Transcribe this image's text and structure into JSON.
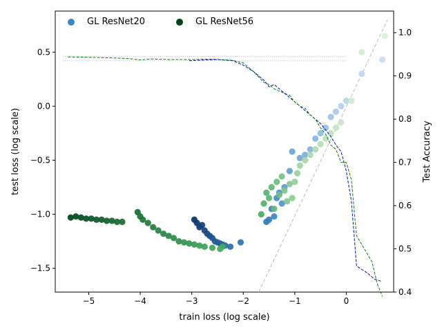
{
  "chart_data": {
    "type": "scatter",
    "xlabel": "train loss (log scale)",
    "ylabel_left": "test loss (log scale)",
    "ylabel_right": "Test Accuracy",
    "xlim": [
      -5.65,
      0.92
    ],
    "ylim_left": [
      -1.72,
      0.88
    ],
    "ylim_right": [
      0.4,
      1.05
    ],
    "x_ticks": [
      -5,
      -4,
      -3,
      -2,
      -1,
      0
    ],
    "x_tick_labels": [
      "−5",
      "−4",
      "−3",
      "−2",
      "−1",
      "0"
    ],
    "y_left_ticks": [
      -1.5,
      -1.0,
      -0.5,
      0.0,
      0.5
    ],
    "y_left_tick_labels": [
      "−1.5",
      "−1.0",
      "−0.5",
      "0.0",
      "0.5"
    ],
    "y_right_ticks": [
      0.4,
      0.5,
      0.6,
      0.7,
      0.8,
      0.9,
      1.0
    ],
    "y_right_tick_labels": [
      "0.4",
      "0.5",
      "0.6",
      "0.7",
      "0.8",
      "0.9",
      "1.0"
    ],
    "legend": [
      "GL ResNet20",
      "GL ResNet56"
    ],
    "colors": {
      "resnet20_dark": "#08306b",
      "resnet20_mid": "#3a87c4",
      "resnet20_light": "#c9dcf0",
      "resnet56_dark": "#00441b",
      "resnet56_mid": "#41ab5d",
      "resnet56_light": "#d8f0d2",
      "resnet20_line": "#0000dd",
      "resnet56_line": "#008000",
      "reference_line": "#bbbbbb",
      "threshold_line": "#aaaaee"
    },
    "series": [
      {
        "name": "GL ResNet20",
        "axis": "left",
        "points": [
          [
            -2.95,
            -1.05
          ],
          [
            -2.9,
            -1.08
          ],
          [
            -2.85,
            -1.12
          ],
          [
            -2.8,
            -1.1
          ],
          [
            -2.75,
            -1.15
          ],
          [
            -2.7,
            -1.18
          ],
          [
            -2.65,
            -1.2
          ],
          [
            -2.6,
            -1.22
          ],
          [
            -2.55,
            -1.25
          ],
          [
            -2.5,
            -1.26
          ],
          [
            -2.45,
            -1.27
          ],
          [
            -2.4,
            -1.28
          ],
          [
            -2.35,
            -1.29
          ],
          [
            -2.25,
            -1.3
          ],
          [
            -2.05,
            -1.26
          ],
          [
            -1.55,
            -1.07
          ],
          [
            -1.5,
            -1.05
          ],
          [
            -1.45,
            -0.95
          ],
          [
            -1.4,
            -1.02
          ],
          [
            -1.35,
            -0.85
          ],
          [
            -1.3,
            -0.8
          ],
          [
            -1.25,
            -0.9
          ],
          [
            -1.2,
            -0.75
          ],
          [
            -1.1,
            -0.6
          ],
          [
            -1.05,
            -0.42
          ],
          [
            -0.9,
            -0.48
          ],
          [
            -0.8,
            -0.45
          ],
          [
            -0.7,
            -0.4
          ],
          [
            -0.6,
            -0.3
          ],
          [
            -0.5,
            -0.25
          ],
          [
            -0.4,
            -0.2
          ],
          [
            -0.3,
            -0.1
          ],
          [
            -0.2,
            -0.05
          ],
          [
            -0.1,
            0.0
          ],
          [
            0.0,
            0.05
          ],
          [
            0.3,
            0.3
          ],
          [
            0.7,
            0.43
          ]
        ]
      },
      {
        "name": "GL ResNet56",
        "axis": "left",
        "points": [
          [
            -5.35,
            -1.03
          ],
          [
            -5.25,
            -1.02
          ],
          [
            -5.15,
            -1.03
          ],
          [
            -5.05,
            -1.04
          ],
          [
            -4.95,
            -1.04
          ],
          [
            -4.85,
            -1.05
          ],
          [
            -4.75,
            -1.05
          ],
          [
            -4.65,
            -1.06
          ],
          [
            -4.55,
            -1.06
          ],
          [
            -4.45,
            -1.07
          ],
          [
            -4.35,
            -1.07
          ],
          [
            -4.05,
            -0.98
          ],
          [
            -4.0,
            -1.02
          ],
          [
            -3.95,
            -1.05
          ],
          [
            -3.85,
            -1.08
          ],
          [
            -3.75,
            -1.12
          ],
          [
            -3.65,
            -1.15
          ],
          [
            -3.55,
            -1.18
          ],
          [
            -3.45,
            -1.2
          ],
          [
            -3.35,
            -1.22
          ],
          [
            -3.25,
            -1.25
          ],
          [
            -3.15,
            -1.26
          ],
          [
            -3.05,
            -1.27
          ],
          [
            -2.95,
            -1.28
          ],
          [
            -2.85,
            -1.29
          ],
          [
            -2.75,
            -1.3
          ],
          [
            -2.6,
            -1.31
          ],
          [
            -2.45,
            -1.32
          ],
          [
            -2.4,
            -1.3
          ],
          [
            -1.65,
            -1.0
          ],
          [
            -1.6,
            -0.9
          ],
          [
            -1.55,
            -0.8
          ],
          [
            -1.5,
            -0.85
          ],
          [
            -1.45,
            -0.75
          ],
          [
            -1.4,
            -0.95
          ],
          [
            -1.35,
            -0.7
          ],
          [
            -1.3,
            -0.82
          ],
          [
            -1.25,
            -0.65
          ],
          [
            -1.2,
            -0.78
          ],
          [
            -1.15,
            -0.88
          ],
          [
            -1.1,
            -0.72
          ],
          [
            -1.05,
            -0.85
          ],
          [
            -1.0,
            -0.7
          ],
          [
            -0.95,
            -0.62
          ],
          [
            -0.9,
            -0.55
          ],
          [
            -0.8,
            -0.5
          ],
          [
            -0.7,
            -0.45
          ],
          [
            -0.6,
            -0.4
          ],
          [
            -0.5,
            -0.35
          ],
          [
            -0.4,
            -0.3
          ],
          [
            -0.3,
            -0.25
          ],
          [
            -0.2,
            -0.2
          ],
          [
            -0.1,
            -0.15
          ],
          [
            0.1,
            0.05
          ],
          [
            0.3,
            0.5
          ],
          [
            0.75,
            0.65
          ]
        ]
      },
      {
        "name": "GL ResNet20",
        "axis": "right",
        "line": [
          [
            -3.05,
            0.935
          ],
          [
            -2.9,
            0.936
          ],
          [
            -2.7,
            0.937
          ],
          [
            -2.5,
            0.938
          ],
          [
            -2.2,
            0.935
          ],
          [
            -2.0,
            0.925
          ],
          [
            -1.8,
            0.91
          ],
          [
            -1.6,
            0.89
          ],
          [
            -1.5,
            0.875
          ],
          [
            -1.4,
            0.88
          ],
          [
            -1.3,
            0.87
          ],
          [
            -1.2,
            0.86
          ],
          [
            -1.1,
            0.85
          ],
          [
            -1.0,
            0.84
          ],
          [
            -0.9,
            0.83
          ],
          [
            -0.8,
            0.82
          ],
          [
            -0.7,
            0.81
          ],
          [
            -0.6,
            0.8
          ],
          [
            -0.5,
            0.79
          ],
          [
            -0.4,
            0.775
          ],
          [
            -0.3,
            0.76
          ],
          [
            -0.2,
            0.74
          ],
          [
            -0.1,
            0.725
          ],
          [
            0.0,
            0.68
          ],
          [
            0.1,
            0.61
          ],
          [
            0.2,
            0.46
          ],
          [
            0.4,
            0.445
          ],
          [
            0.55,
            0.43
          ],
          [
            0.68,
            0.425
          ]
        ]
      },
      {
        "name": "GL ResNet56",
        "axis": "right",
        "line": [
          [
            -5.4,
            0.944
          ],
          [
            -5.0,
            0.943
          ],
          [
            -4.6,
            0.942
          ],
          [
            -4.2,
            0.94
          ],
          [
            -4.0,
            0.937
          ],
          [
            -3.8,
            0.939
          ],
          [
            -3.4,
            0.938
          ],
          [
            -3.0,
            0.938
          ],
          [
            -2.6,
            0.939
          ],
          [
            -2.2,
            0.936
          ],
          [
            -2.0,
            0.93
          ],
          [
            -1.8,
            0.91
          ],
          [
            -1.6,
            0.885
          ],
          [
            -1.5,
            0.88
          ],
          [
            -1.4,
            0.87
          ],
          [
            -1.3,
            0.865
          ],
          [
            -1.2,
            0.86
          ],
          [
            -1.1,
            0.855
          ],
          [
            -1.0,
            0.84
          ],
          [
            -0.9,
            0.83
          ],
          [
            -0.8,
            0.825
          ],
          [
            -0.7,
            0.81
          ],
          [
            -0.6,
            0.8
          ],
          [
            -0.5,
            0.78
          ],
          [
            -0.4,
            0.765
          ],
          [
            -0.3,
            0.74
          ],
          [
            -0.2,
            0.73
          ],
          [
            -0.1,
            0.7
          ],
          [
            0.0,
            0.7
          ],
          [
            0.1,
            0.66
          ],
          [
            0.2,
            0.53
          ],
          [
            0.35,
            0.5
          ],
          [
            0.5,
            0.47
          ],
          [
            0.6,
            0.42
          ],
          [
            0.7,
            0.39
          ]
        ]
      }
    ],
    "reference_line": [
      [
        -1.7,
        -1.72
      ],
      [
        0.8,
        0.8
      ]
    ],
    "threshold_lines_right": [
      0.945,
      0.935
    ]
  }
}
